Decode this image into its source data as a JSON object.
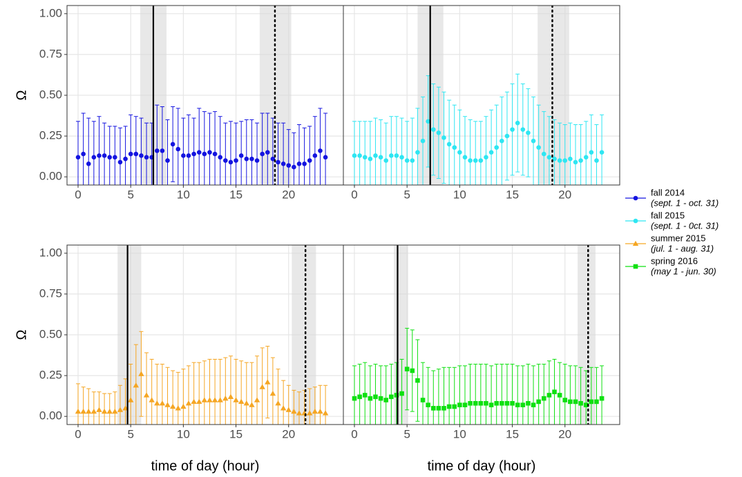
{
  "chart_data": [
    {
      "type": "errorbar",
      "ylabel": "Ω",
      "xlim": [
        -1.05,
        25.2
      ],
      "xticks": [
        0,
        5,
        10,
        15,
        20
      ],
      "ylim": [
        -0.05,
        1.05
      ],
      "yticks": [
        {
          "value": 0,
          "label": "0.00"
        },
        {
          "value": 0.25,
          "label": "0.25"
        },
        {
          "value": 0.5,
          "label": "0.50"
        },
        {
          "value": 0.75,
          "label": "0.75"
        },
        {
          "value": 1,
          "label": "1.00"
        }
      ],
      "bands": [
        [
          5.9,
          8.4
        ],
        [
          17.25,
          20.25
        ]
      ],
      "vlines": [
        {
          "x": 7.15,
          "style": "solid"
        },
        {
          "x": 18.7,
          "style": "dotted"
        }
      ],
      "x": [
        0,
        0.5,
        1,
        1.5,
        2,
        2.5,
        3,
        3.5,
        4,
        4.5,
        5,
        5.5,
        6,
        6.5,
        7,
        7.5,
        8,
        8.5,
        9,
        9.5,
        10,
        10.5,
        11,
        11.5,
        12,
        12.5,
        13,
        13.5,
        14,
        14.5,
        15,
        15.5,
        16,
        16.5,
        17,
        17.5,
        18,
        18.5,
        19,
        19.5,
        20,
        20.5,
        21,
        21.5,
        22,
        22.5,
        23,
        23.5
      ],
      "series": [
        {
          "name": "fall 2014",
          "period": "(sept. 1 - oct. 31)",
          "color": "#1414e0",
          "marker": "circle",
          "values": [
            0.12,
            0.14,
            0.08,
            0.12,
            0.13,
            0.13,
            0.12,
            0.12,
            0.09,
            0.11,
            0.14,
            0.14,
            0.13,
            0.12,
            0.12,
            0.16,
            0.16,
            0.1,
            0.2,
            0.17,
            0.13,
            0.13,
            0.14,
            0.15,
            0.14,
            0.15,
            0.14,
            0.12,
            0.1,
            0.09,
            0.1,
            0.13,
            0.11,
            0.11,
            0.1,
            0.14,
            0.15,
            0.11,
            0.09,
            0.08,
            0.07,
            0.06,
            0.08,
            0.08,
            0.1,
            0.13,
            0.16,
            0.12
          ],
          "errors": [
            0.22,
            0.25,
            0.28,
            0.22,
            0.24,
            0.2,
            0.19,
            0.19,
            0.21,
            0.2,
            0.24,
            0.23,
            0.23,
            0.21,
            0.21,
            0.28,
            0.27,
            0.25,
            0.23,
            0.25,
            0.23,
            0.25,
            0.22,
            0.27,
            0.26,
            0.24,
            0.26,
            0.25,
            0.23,
            0.25,
            0.23,
            0.21,
            0.24,
            0.24,
            0.23,
            0.25,
            0.24,
            0.25,
            0.24,
            0.25,
            0.22,
            0.21,
            0.24,
            0.22,
            0.21,
            0.24,
            0.26,
            0.27
          ]
        }
      ]
    },
    {
      "type": "errorbar",
      "xlim": [
        -1.05,
        25.2
      ],
      "xticks": [
        0,
        5,
        10,
        15,
        20
      ],
      "ylim": [
        -0.05,
        1.05
      ],
      "yticks": [
        0,
        0.25,
        0.5,
        0.75,
        1
      ],
      "bands": [
        [
          6.0,
          8.45
        ],
        [
          17.4,
          20.4
        ]
      ],
      "vlines": [
        {
          "x": 7.2,
          "style": "solid"
        },
        {
          "x": 18.8,
          "style": "dotted"
        }
      ],
      "x": [
        0,
        0.5,
        1,
        1.5,
        2,
        2.5,
        3,
        3.5,
        4,
        4.5,
        5,
        5.5,
        6,
        6.5,
        7,
        7.5,
        8,
        8.5,
        9,
        9.5,
        10,
        10.5,
        11,
        11.5,
        12,
        12.5,
        13,
        13.5,
        14,
        14.5,
        15,
        15.5,
        16,
        16.5,
        17,
        17.5,
        18,
        18.5,
        19,
        19.5,
        20,
        20.5,
        21,
        21.5,
        22,
        22.5,
        23,
        23.5
      ],
      "series": [
        {
          "name": "fall 2015",
          "period": "(sept. 1 - 0ct. 31)",
          "color": "#2ee6f2",
          "marker": "circle",
          "values": [
            0.13,
            0.13,
            0.12,
            0.11,
            0.13,
            0.12,
            0.1,
            0.13,
            0.13,
            0.12,
            0.1,
            0.1,
            0.15,
            0.22,
            0.34,
            0.29,
            0.27,
            0.24,
            0.2,
            0.18,
            0.15,
            0.12,
            0.1,
            0.1,
            0.1,
            0.12,
            0.15,
            0.18,
            0.22,
            0.25,
            0.29,
            0.33,
            0.29,
            0.27,
            0.22,
            0.18,
            0.14,
            0.12,
            0.11,
            0.1,
            0.1,
            0.11,
            0.09,
            0.1,
            0.12,
            0.15,
            0.1,
            0.15
          ],
          "errors": [
            0.21,
            0.21,
            0.22,
            0.23,
            0.23,
            0.23,
            0.23,
            0.24,
            0.24,
            0.24,
            0.24,
            0.26,
            0.27,
            0.27,
            0.28,
            0.28,
            0.28,
            0.28,
            0.27,
            0.26,
            0.26,
            0.25,
            0.25,
            0.24,
            0.24,
            0.25,
            0.26,
            0.26,
            0.27,
            0.27,
            0.28,
            0.3,
            0.28,
            0.27,
            0.27,
            0.26,
            0.26,
            0.25,
            0.24,
            0.23,
            0.22,
            0.22,
            0.23,
            0.22,
            0.22,
            0.23,
            0.22,
            0.23
          ]
        }
      ]
    },
    {
      "type": "errorbar",
      "ylabel": "Ω",
      "xlabel": "time of day (hour)",
      "xlim": [
        -1.05,
        25.2
      ],
      "xticks": [
        0,
        5,
        10,
        15,
        20
      ],
      "ylim": [
        -0.05,
        1.05
      ],
      "yticks": [
        {
          "value": 0,
          "label": "0.00"
        },
        {
          "value": 0.25,
          "label": "0.25"
        },
        {
          "value": 0.5,
          "label": "0.50"
        },
        {
          "value": 0.75,
          "label": "0.75"
        },
        {
          "value": 1,
          "label": "1.00"
        }
      ],
      "bands": [
        [
          3.75,
          6.0
        ],
        [
          20.3,
          22.6
        ]
      ],
      "vlines": [
        {
          "x": 4.7,
          "style": "solid"
        },
        {
          "x": 21.6,
          "style": "dotted"
        }
      ],
      "x": [
        0,
        0.5,
        1,
        1.5,
        2,
        2.5,
        3,
        3.5,
        4,
        4.5,
        5,
        5.5,
        6,
        6.5,
        7,
        7.5,
        8,
        8.5,
        9,
        9.5,
        10,
        10.5,
        11,
        11.5,
        12,
        12.5,
        13,
        13.5,
        14,
        14.5,
        15,
        15.5,
        16,
        16.5,
        17,
        17.5,
        18,
        18.5,
        19,
        19.5,
        20,
        20.5,
        21,
        21.5,
        22,
        22.5,
        23,
        23.5
      ],
      "series": [
        {
          "name": "summer 2015",
          "period": "(jul. 1 - aug. 31)",
          "color": "#f5a623",
          "marker": "triangle",
          "values": [
            0.03,
            0.03,
            0.03,
            0.03,
            0.04,
            0.03,
            0.03,
            0.03,
            0.04,
            0.05,
            0.1,
            0.19,
            0.26,
            0.13,
            0.1,
            0.08,
            0.08,
            0.07,
            0.06,
            0.05,
            0.06,
            0.08,
            0.09,
            0.09,
            0.1,
            0.1,
            0.1,
            0.1,
            0.11,
            0.12,
            0.1,
            0.09,
            0.08,
            0.07,
            0.1,
            0.18,
            0.21,
            0.14,
            0.08,
            0.05,
            0.04,
            0.03,
            0.02,
            0.02,
            0.02,
            0.03,
            0.03,
            0.02
          ],
          "errors": [
            0.17,
            0.15,
            0.14,
            0.12,
            0.11,
            0.11,
            0.11,
            0.12,
            0.15,
            0.18,
            0.22,
            0.25,
            0.26,
            0.26,
            0.25,
            0.24,
            0.24,
            0.23,
            0.22,
            0.22,
            0.23,
            0.23,
            0.24,
            0.24,
            0.24,
            0.25,
            0.25,
            0.25,
            0.25,
            0.25,
            0.25,
            0.25,
            0.25,
            0.26,
            0.27,
            0.24,
            0.22,
            0.22,
            0.21,
            0.17,
            0.15,
            0.13,
            0.13,
            0.14,
            0.15,
            0.15,
            0.16,
            0.17
          ]
        }
      ]
    },
    {
      "type": "errorbar",
      "xlabel": "time of day (hour)",
      "xlim": [
        -1.05,
        25.2
      ],
      "xticks": [
        0,
        5,
        10,
        15,
        20
      ],
      "ylim": [
        -0.05,
        1.05
      ],
      "yticks": [
        0,
        0.25,
        0.5,
        0.75,
        1
      ],
      "bands": [
        [
          3.75,
          5.1
        ],
        [
          21.2,
          22.9
        ]
      ],
      "vlines": [
        {
          "x": 4.1,
          "style": "solid"
        },
        {
          "x": 22.2,
          "style": "dotted"
        }
      ],
      "x": [
        0,
        0.5,
        1,
        1.5,
        2,
        2.5,
        3,
        3.5,
        4,
        4.5,
        5,
        5.5,
        6,
        6.5,
        7,
        7.5,
        8,
        8.5,
        9,
        9.5,
        10,
        10.5,
        11,
        11.5,
        12,
        12.5,
        13,
        13.5,
        14,
        14.5,
        15,
        15.5,
        16,
        16.5,
        17,
        17.5,
        18,
        18.5,
        19,
        19.5,
        20,
        20.5,
        21,
        21.5,
        22,
        22.5,
        23,
        23.5
      ],
      "series": [
        {
          "name": "spring 2016",
          "period": "(may 1 - jun. 30)",
          "color": "#0ee010",
          "marker": "square",
          "values": [
            0.11,
            0.12,
            0.13,
            0.11,
            0.12,
            0.11,
            0.1,
            0.12,
            0.13,
            0.14,
            0.29,
            0.28,
            0.22,
            0.1,
            0.07,
            0.05,
            0.05,
            0.05,
            0.06,
            0.06,
            0.07,
            0.07,
            0.08,
            0.08,
            0.08,
            0.08,
            0.07,
            0.08,
            0.08,
            0.08,
            0.08,
            0.07,
            0.07,
            0.08,
            0.07,
            0.09,
            0.11,
            0.13,
            0.15,
            0.13,
            0.1,
            0.09,
            0.09,
            0.08,
            0.07,
            0.09,
            0.09,
            0.11
          ],
          "errors": [
            0.2,
            0.2,
            0.2,
            0.2,
            0.2,
            0.2,
            0.21,
            0.2,
            0.2,
            0.21,
            0.25,
            0.25,
            0.25,
            0.23,
            0.23,
            0.23,
            0.24,
            0.25,
            0.24,
            0.24,
            0.24,
            0.24,
            0.24,
            0.24,
            0.24,
            0.24,
            0.24,
            0.24,
            0.24,
            0.24,
            0.24,
            0.24,
            0.24,
            0.24,
            0.24,
            0.23,
            0.21,
            0.21,
            0.2,
            0.2,
            0.22,
            0.22,
            0.22,
            0.22,
            0.21,
            0.21,
            0.21,
            0.2
          ]
        }
      ]
    }
  ]
}
